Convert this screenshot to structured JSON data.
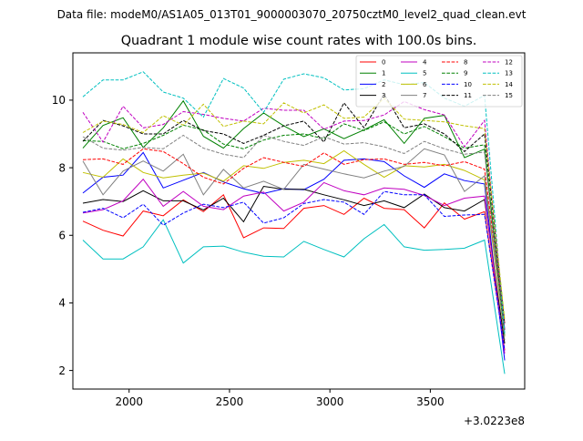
{
  "figure": {
    "suptitle": "Data file: modeM0/AS1A05_013T01_9000003070_20750cztM0_level2_quad_clean.evt"
  },
  "chart_data": {
    "type": "line",
    "title": "Quadrant 1 module wise count rates with 100.0s bins.",
    "xlabel": "",
    "ylabel": "",
    "offset_label": "+3.0223e8",
    "xlim": [
      1720,
      3970
    ],
    "ylim": [
      1.45,
      11.4
    ],
    "xticks": [
      2000,
      2500,
      3000,
      3500
    ],
    "yticks": [
      2,
      4,
      6,
      8,
      10
    ],
    "legend_position": "top-right",
    "x": [
      1770,
      1870,
      1970,
      2070,
      2170,
      2270,
      2370,
      2470,
      2570,
      2670,
      2770,
      2870,
      2970,
      3070,
      3170,
      3270,
      3370,
      3470,
      3570,
      3670,
      3770,
      3870
    ],
    "series": [
      {
        "name": "0",
        "color": "#ff0000",
        "dash": "solid",
        "values": [
          6.42,
          6.15,
          5.98,
          6.72,
          6.58,
          7.05,
          6.7,
          7.2,
          5.93,
          6.22,
          6.2,
          6.8,
          6.88,
          6.62,
          7.1,
          6.8,
          6.76,
          6.22,
          6.96,
          6.48,
          6.7,
          2.6
        ]
      },
      {
        "name": "1",
        "color": "#008000",
        "dash": "solid",
        "values": [
          8.58,
          9.25,
          9.48,
          8.6,
          9.18,
          9.98,
          8.93,
          8.58,
          9.16,
          9.62,
          9.24,
          8.92,
          9.15,
          8.86,
          9.12,
          9.42,
          8.72,
          9.46,
          9.55,
          8.3,
          8.55,
          3.2
        ]
      },
      {
        "name": "2",
        "color": "#0000ff",
        "dash": "solid",
        "values": [
          7.25,
          7.72,
          7.78,
          8.45,
          7.4,
          7.63,
          7.86,
          7.58,
          7.38,
          7.24,
          7.38,
          7.35,
          7.66,
          8.22,
          8.26,
          8.18,
          7.76,
          7.42,
          7.82,
          7.62,
          7.52,
          2.3
        ]
      },
      {
        "name": "3",
        "color": "#000000",
        "dash": "solid",
        "values": [
          6.95,
          7.06,
          7.0,
          7.32,
          7.02,
          7.02,
          6.75,
          7.1,
          6.4,
          7.45,
          7.36,
          7.36,
          7.2,
          7.05,
          6.88,
          7.02,
          6.82,
          7.22,
          6.82,
          6.72,
          7.06,
          2.8
        ]
      },
      {
        "name": "4",
        "color": "#c000c0",
        "dash": "solid",
        "values": [
          6.66,
          6.76,
          7.02,
          7.66,
          6.86,
          7.3,
          6.86,
          6.76,
          7.16,
          7.28,
          6.72,
          6.98,
          7.56,
          7.32,
          7.2,
          7.4,
          7.36,
          7.18,
          6.88,
          7.1,
          7.16,
          2.5
        ]
      },
      {
        "name": "5",
        "color": "#00c0c0",
        "dash": "solid",
        "values": [
          5.86,
          5.3,
          5.3,
          5.66,
          6.46,
          5.18,
          5.66,
          5.68,
          5.5,
          5.38,
          5.36,
          5.82,
          5.58,
          5.36,
          5.9,
          6.32,
          5.66,
          5.56,
          5.58,
          5.62,
          5.86,
          1.9
        ]
      },
      {
        "name": "6",
        "color": "#c0c000",
        "dash": "solid",
        "values": [
          7.86,
          7.72,
          8.26,
          7.86,
          7.7,
          7.78,
          7.84,
          7.6,
          8.06,
          7.98,
          8.16,
          8.22,
          8.12,
          8.5,
          8.1,
          7.72,
          8.06,
          8.02,
          8.1,
          7.92,
          7.64,
          3.0
        ]
      },
      {
        "name": "7",
        "color": "#808080",
        "dash": "solid",
        "values": [
          8.2,
          7.2,
          7.9,
          8.2,
          7.9,
          8.4,
          7.2,
          7.95,
          7.4,
          7.6,
          7.36,
          8.1,
          7.96,
          7.82,
          7.7,
          7.9,
          8.04,
          8.56,
          8.38,
          7.3,
          7.76,
          3.1
        ]
      },
      {
        "name": "8",
        "color": "#ff0000",
        "dash": "dashed",
        "values": [
          8.24,
          8.26,
          8.1,
          8.56,
          8.48,
          8.12,
          7.72,
          7.52,
          7.98,
          8.3,
          8.16,
          8.04,
          8.44,
          8.1,
          8.24,
          8.26,
          8.1,
          8.16,
          8.06,
          8.18,
          7.96,
          3.4
        ]
      },
      {
        "name": "9",
        "color": "#008000",
        "dash": "dashed",
        "values": [
          8.8,
          8.78,
          8.56,
          8.72,
          8.96,
          9.26,
          9.12,
          8.7,
          8.56,
          8.82,
          8.96,
          9.0,
          8.86,
          9.3,
          9.1,
          9.36,
          9.0,
          9.22,
          8.92,
          8.58,
          8.68,
          3.0
        ]
      },
      {
        "name": "10",
        "color": "#0000ff",
        "dash": "dashed",
        "values": [
          6.68,
          6.8,
          6.52,
          6.92,
          6.3,
          6.66,
          6.92,
          6.82,
          6.98,
          6.36,
          6.52,
          6.94,
          7.06,
          6.98,
          6.62,
          7.3,
          7.2,
          7.2,
          6.56,
          6.6,
          6.62,
          2.6
        ]
      },
      {
        "name": "11",
        "color": "#000000",
        "dash": "dashed",
        "values": [
          8.78,
          9.4,
          9.24,
          9.0,
          9.0,
          9.4,
          9.1,
          9.0,
          8.72,
          8.96,
          9.24,
          9.38,
          8.76,
          9.92,
          9.18,
          10.18,
          9.18,
          9.3,
          9.0,
          8.48,
          9.0,
          3.4
        ]
      },
      {
        "name": "12",
        "color": "#c000c0",
        "dash": "dashed",
        "values": [
          9.64,
          8.76,
          9.82,
          9.18,
          9.28,
          9.66,
          9.58,
          9.46,
          9.38,
          9.76,
          9.7,
          9.7,
          9.14,
          9.38,
          9.4,
          9.56,
          9.96,
          9.72,
          9.56,
          8.62,
          9.4,
          3.2
        ]
      },
      {
        "name": "13",
        "color": "#00c0c0",
        "dash": "dashed",
        "values": [
          10.1,
          10.6,
          10.6,
          10.84,
          10.24,
          10.06,
          9.5,
          10.64,
          10.36,
          9.64,
          10.62,
          10.78,
          10.66,
          10.3,
          10.34,
          10.6,
          10.46,
          10.52,
          10.06,
          9.82,
          10.14,
          3.1
        ]
      },
      {
        "name": "14",
        "color": "#c0c000",
        "dash": "dashed",
        "values": [
          9.04,
          9.38,
          9.28,
          9.04,
          9.54,
          9.26,
          9.88,
          9.22,
          9.38,
          9.3,
          9.92,
          9.62,
          9.86,
          9.46,
          9.5,
          10.06,
          9.44,
          9.4,
          9.36,
          9.24,
          9.16,
          3.5
        ]
      },
      {
        "name": "15",
        "color": "#808080",
        "dash": "dashed",
        "values": [
          8.92,
          8.58,
          8.52,
          8.6,
          8.56,
          8.96,
          8.58,
          8.4,
          8.3,
          8.96,
          8.78,
          8.66,
          8.92,
          8.7,
          8.74,
          8.62,
          8.42,
          8.78,
          8.56,
          8.4,
          8.46,
          2.9
        ]
      }
    ]
  }
}
